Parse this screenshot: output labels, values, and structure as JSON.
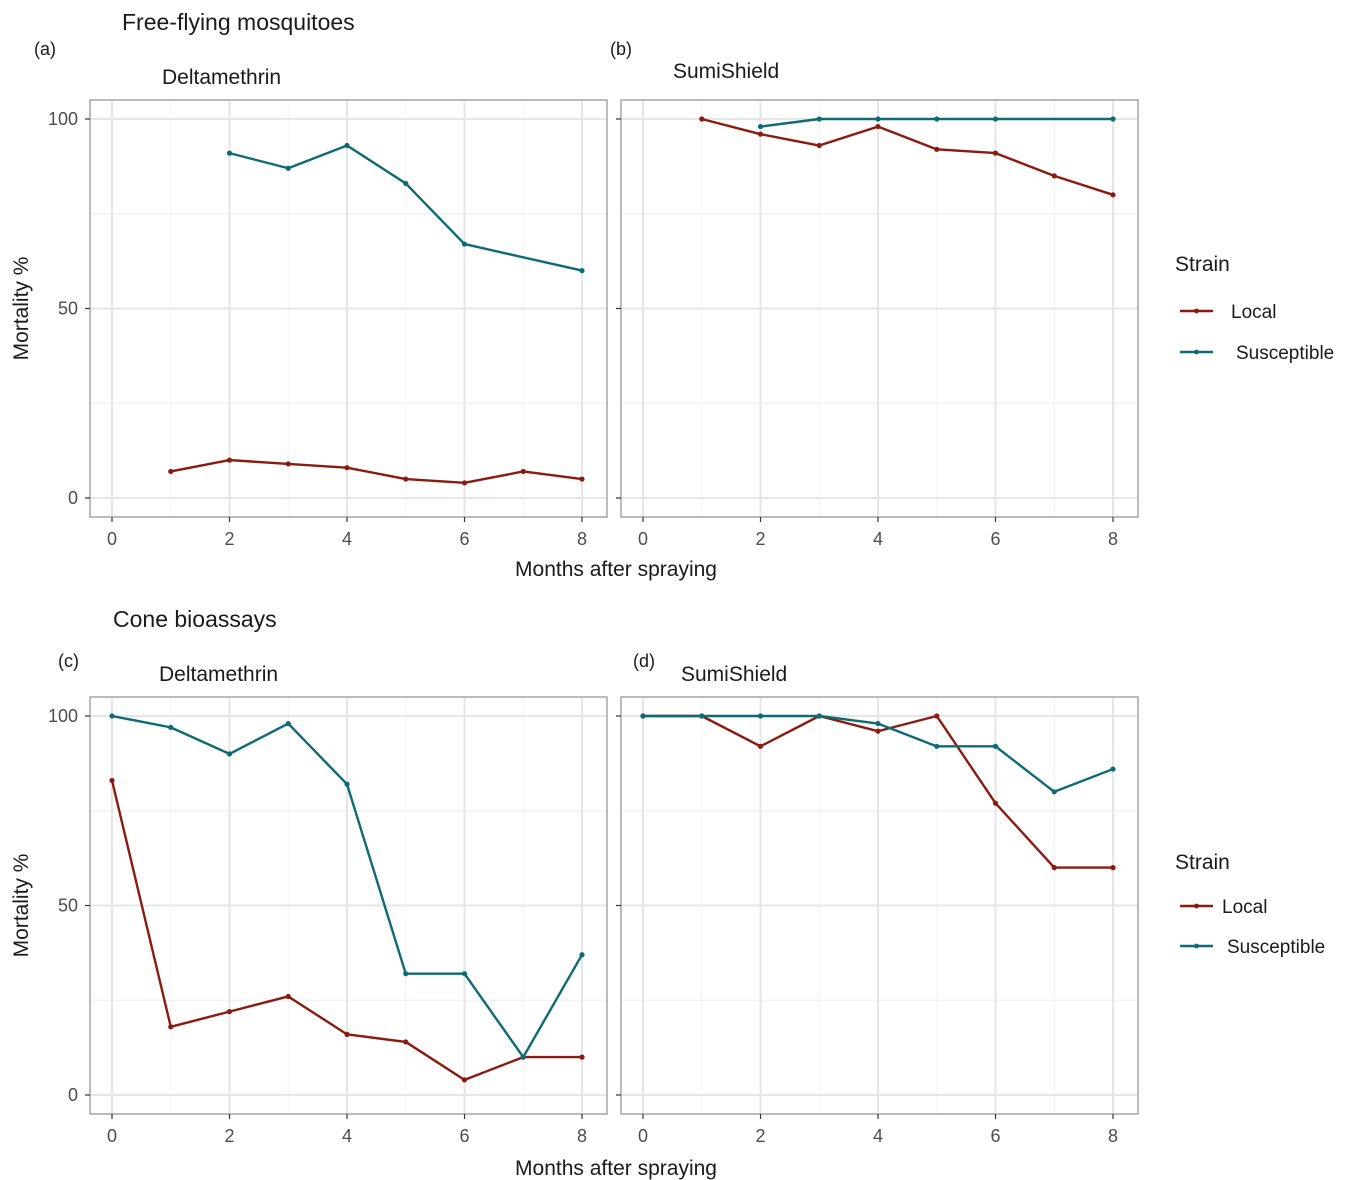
{
  "sections": [
    {
      "title": "Free-flying mosquitoes"
    },
    {
      "title": "Cone bioassays"
    }
  ],
  "colors": {
    "Local": "#8b1a10",
    "Susceptible": "#0e6b73",
    "grid": "#e6e6e6",
    "border": "#a6a6a6"
  },
  "legend": {
    "title": "Strain",
    "entries": [
      "Local",
      "Susceptible"
    ]
  },
  "chart_data": [
    {
      "type": "line",
      "panel_letter": "(a)",
      "panel_title": "Deltamethrin",
      "xlabel": "Months after spraying",
      "ylabel": "Mortality %",
      "xlim": [
        0,
        8
      ],
      "ylim": [
        0,
        100
      ],
      "xticks": [
        0,
        2,
        4,
        6,
        8
      ],
      "yticks": [
        0,
        50,
        100
      ],
      "grid": true,
      "series": [
        {
          "name": "Local",
          "x": [
            1,
            2,
            3,
            4,
            5,
            6,
            7,
            8
          ],
          "y": [
            7,
            10,
            9,
            8,
            5,
            4,
            7,
            5
          ]
        },
        {
          "name": "Susceptible",
          "x": [
            2,
            3,
            4,
            5,
            6,
            8
          ],
          "y": [
            91,
            87,
            93,
            83,
            67,
            60
          ]
        }
      ]
    },
    {
      "type": "line",
      "panel_letter": "(b)",
      "panel_title": "SumiShield",
      "xlabel": "Months after spraying",
      "ylabel": "",
      "xlim": [
        0,
        8
      ],
      "ylim": [
        0,
        100
      ],
      "xticks": [
        0,
        2,
        4,
        6,
        8
      ],
      "yticks": [
        0,
        50,
        100
      ],
      "grid": true,
      "series": [
        {
          "name": "Local",
          "x": [
            1,
            2,
            3,
            4,
            5,
            6,
            7,
            8
          ],
          "y": [
            100,
            96,
            93,
            98,
            92,
            91,
            85,
            80
          ]
        },
        {
          "name": "Susceptible",
          "x": [
            2,
            3,
            4,
            5,
            6,
            8
          ],
          "y": [
            98,
            100,
            100,
            100,
            100,
            100
          ]
        }
      ]
    },
    {
      "type": "line",
      "panel_letter": "(c)",
      "panel_title": "Deltamethrin",
      "xlabel": "Months after spraying",
      "ylabel": "Mortality %",
      "xlim": [
        0,
        8
      ],
      "ylim": [
        0,
        100
      ],
      "xticks": [
        0,
        2,
        4,
        6,
        8
      ],
      "yticks": [
        0,
        50,
        100
      ],
      "grid": true,
      "series": [
        {
          "name": "Local",
          "x": [
            0,
            1,
            2,
            3,
            4,
            5,
            6,
            7,
            8
          ],
          "y": [
            83,
            18,
            22,
            26,
            16,
            14,
            4,
            10,
            10
          ]
        },
        {
          "name": "Susceptible",
          "x": [
            0,
            1,
            2,
            3,
            4,
            5,
            6,
            7,
            8
          ],
          "y": [
            100,
            97,
            90,
            98,
            82,
            32,
            32,
            10,
            37
          ]
        }
      ]
    },
    {
      "type": "line",
      "panel_letter": "(d)",
      "panel_title": "SumiShield",
      "xlabel": "Months after spraying",
      "ylabel": "",
      "xlim": [
        0,
        8
      ],
      "ylim": [
        0,
        100
      ],
      "xticks": [
        0,
        2,
        4,
        6,
        8
      ],
      "yticks": [
        0,
        50,
        100
      ],
      "grid": true,
      "series": [
        {
          "name": "Local",
          "x": [
            0,
            1,
            2,
            3,
            4,
            5,
            6,
            7,
            8
          ],
          "y": [
            100,
            100,
            92,
            100,
            96,
            100,
            77,
            60,
            60
          ]
        },
        {
          "name": "Susceptible",
          "x": [
            0,
            1,
            2,
            3,
            4,
            5,
            6,
            7,
            8
          ],
          "y": [
            100,
            100,
            100,
            100,
            98,
            92,
            92,
            80,
            86
          ]
        }
      ]
    }
  ]
}
